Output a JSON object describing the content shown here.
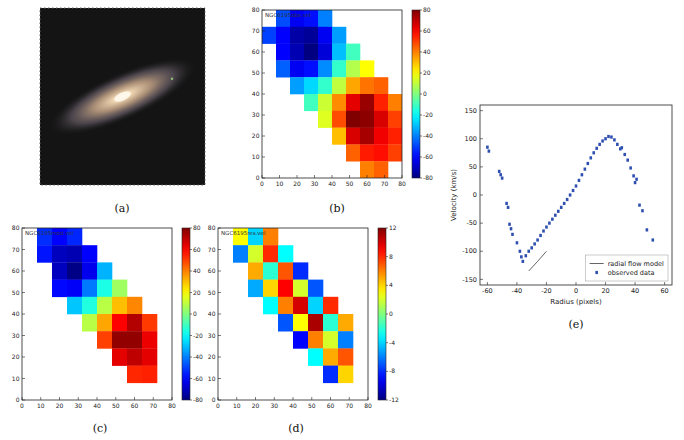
{
  "chart_data": [
    {
      "type": "image",
      "label": "(a)"
    },
    {
      "type": "heatmap",
      "label": "(b)",
      "title": "NGC6195obs.vel",
      "x": [
        4,
        12,
        20,
        28,
        36,
        44,
        52,
        60,
        68,
        76
      ],
      "y": [
        76,
        68,
        60,
        52,
        44,
        36,
        28,
        20,
        12,
        4
      ],
      "cells": [
        [
          null,
          -48,
          -62,
          -58,
          -40,
          null,
          null,
          null,
          null,
          null
        ],
        [
          -50,
          -60,
          -74,
          -76,
          -62,
          -35,
          null,
          null,
          null,
          null
        ],
        [
          null,
          -60,
          -72,
          -80,
          -66,
          -30,
          -10,
          null,
          null,
          null
        ],
        [
          null,
          -45,
          -62,
          -58,
          -38,
          -12,
          8,
          20,
          null,
          null
        ],
        [
          null,
          null,
          -35,
          -26,
          -12,
          10,
          34,
          42,
          45,
          null
        ],
        [
          null,
          null,
          null,
          -10,
          12,
          38,
          64,
          76,
          55,
          40
        ],
        [
          null,
          null,
          null,
          null,
          15,
          48,
          80,
          78,
          66,
          50
        ],
        [
          null,
          null,
          null,
          null,
          null,
          30,
          66,
          74,
          62,
          55
        ],
        [
          null,
          null,
          null,
          null,
          null,
          null,
          45,
          56,
          58,
          50
        ],
        [
          null,
          null,
          null,
          null,
          null,
          null,
          null,
          40,
          45,
          null
        ]
      ],
      "xlim": [
        0,
        80
      ],
      "ylim": [
        0,
        80
      ],
      "xticks": [
        0,
        10,
        20,
        30,
        40,
        50,
        60,
        70,
        80
      ],
      "yticks": [
        0,
        10,
        20,
        30,
        40,
        50,
        60,
        70,
        80
      ],
      "color_range": [
        -80,
        80
      ],
      "color_ticks": [
        -80,
        -60,
        -40,
        -20,
        0,
        20,
        40,
        60,
        80
      ]
    },
    {
      "type": "heatmap",
      "label": "(c)",
      "title": "NGC6195mod.vel",
      "x": [
        4,
        12,
        20,
        28,
        36,
        44,
        52,
        60,
        68,
        76
      ],
      "y": [
        76,
        68,
        60,
        52,
        44,
        36,
        28,
        20,
        12,
        4
      ],
      "cells": [
        [
          null,
          -53,
          -60,
          -54,
          null,
          null,
          null,
          null,
          null,
          null
        ],
        [
          null,
          -57,
          -70,
          -72,
          -60,
          null,
          null,
          null,
          null,
          null
        ],
        [
          null,
          null,
          -70,
          -79,
          -63,
          -32,
          null,
          null,
          null,
          null
        ],
        [
          null,
          null,
          -59,
          -61,
          -41,
          -16,
          5,
          null,
          null,
          null
        ],
        [
          null,
          null,
          null,
          -29,
          -15,
          9,
          30,
          39,
          null,
          null
        ],
        [
          null,
          null,
          null,
          null,
          9,
          34,
          60,
          72,
          51,
          null
        ],
        [
          null,
          null,
          null,
          null,
          null,
          50,
          77,
          77,
          63,
          null
        ],
        [
          null,
          null,
          null,
          null,
          null,
          null,
          64,
          70,
          64,
          null
        ],
        [
          null,
          null,
          null,
          null,
          null,
          null,
          null,
          54,
          55,
          null
        ],
        [
          null,
          null,
          null,
          null,
          null,
          null,
          null,
          null,
          null,
          null
        ]
      ],
      "xlim": [
        0,
        80
      ],
      "ylim": [
        0,
        80
      ],
      "xticks": [
        0,
        10,
        20,
        30,
        40,
        50,
        60,
        70,
        80
      ],
      "yticks": [
        0,
        10,
        20,
        30,
        40,
        50,
        60,
        70,
        80
      ],
      "color_range": [
        -80,
        80
      ],
      "color_ticks": [
        -80,
        -60,
        -40,
        -20,
        0,
        20,
        40,
        60,
        80
      ]
    },
    {
      "type": "heatmap",
      "label": "(d)",
      "title": "NGC6195res.vel",
      "x": [
        4,
        12,
        20,
        28,
        36,
        44,
        52,
        60,
        68,
        76
      ],
      "y": [
        76,
        68,
        60,
        52,
        44,
        36,
        28,
        20,
        12,
        4
      ],
      "cells": [
        [
          null,
          3,
          -4,
          6,
          null,
          null,
          null,
          null,
          null,
          null
        ],
        [
          null,
          -6,
          2,
          8,
          -3,
          null,
          null,
          null,
          null,
          null
        ],
        [
          null,
          null,
          5,
          -2,
          7,
          -8,
          null,
          null,
          null,
          null
        ],
        [
          null,
          null,
          -5,
          4,
          9,
          2,
          -7,
          null,
          null,
          null
        ],
        [
          null,
          null,
          null,
          -3,
          6,
          10,
          -4,
          8,
          null,
          null
        ],
        [
          null,
          null,
          null,
          null,
          -7,
          3,
          11,
          -2,
          5,
          null
        ],
        [
          null,
          null,
          null,
          null,
          null,
          -9,
          6,
          2,
          -6,
          null
        ],
        [
          null,
          null,
          null,
          null,
          null,
          null,
          -3,
          5,
          7,
          null
        ],
        [
          null,
          null,
          null,
          null,
          null,
          null,
          null,
          -8,
          4,
          null
        ],
        [
          null,
          null,
          null,
          null,
          null,
          null,
          null,
          null,
          null,
          null
        ]
      ],
      "xlim": [
        0,
        80
      ],
      "ylim": [
        0,
        80
      ],
      "xticks": [
        0,
        10,
        20,
        30,
        40,
        50,
        60,
        70,
        80
      ],
      "yticks": [
        0,
        10,
        20,
        30,
        40,
        50,
        60,
        70,
        80
      ],
      "color_range": [
        -12,
        12
      ],
      "color_ticks": [
        -12,
        -8,
        -4,
        0,
        4,
        8,
        12
      ]
    },
    {
      "type": "scatter",
      "label": "(e)",
      "x_label": "Radius (pixels)",
      "y_label": "Velocity (km/s)",
      "xlim": [
        -65,
        65
      ],
      "ylim": [
        -160,
        160
      ],
      "xticks": [
        -60,
        -40,
        -20,
        0,
        20,
        40,
        60
      ],
      "yticks": [
        -150,
        -100,
        -50,
        0,
        50,
        100,
        150
      ],
      "grid": false,
      "legend": "lower right",
      "series": [
        {
          "name": "radial flow model",
          "type": "line",
          "color": "#555555",
          "line_style": "solid",
          "x": [
            -32,
            -26,
            -20
          ],
          "values": [
            -135,
            -118,
            -100
          ]
        },
        {
          "name": "observed data",
          "type": "scatter",
          "color": "#2f4fb0",
          "marker": "square",
          "x": [
            -60,
            -59,
            -52,
            -51,
            -50,
            -47,
            -46,
            -45,
            -44,
            -43,
            -40,
            -38,
            -37,
            -36,
            -34,
            -32,
            -30,
            -28,
            -26,
            -24,
            -22,
            -20,
            -18,
            -16,
            -14,
            -12,
            -10,
            -8,
            -6,
            -4,
            -2,
            0,
            2,
            4,
            6,
            8,
            10,
            12,
            14,
            16,
            18,
            20,
            22,
            24,
            26,
            28,
            30,
            31,
            33,
            35,
            37,
            39,
            40,
            41,
            43,
            45,
            48,
            52
          ],
          "values": [
            85,
            78,
            42,
            36,
            30,
            -15,
            -22,
            -52,
            -60,
            -70,
            -85,
            -100,
            -110,
            -118,
            -108,
            -100,
            -94,
            -87,
            -80,
            -72,
            -64,
            -57,
            -50,
            -43,
            -36,
            -29,
            -22,
            -15,
            -8,
            0,
            8,
            16,
            26,
            36,
            46,
            56,
            66,
            75,
            83,
            90,
            96,
            100,
            104,
            103,
            98,
            90,
            82,
            84,
            72,
            62,
            48,
            34,
            22,
            28,
            -18,
            -28,
            -62,
            -80
          ]
        }
      ]
    }
  ]
}
